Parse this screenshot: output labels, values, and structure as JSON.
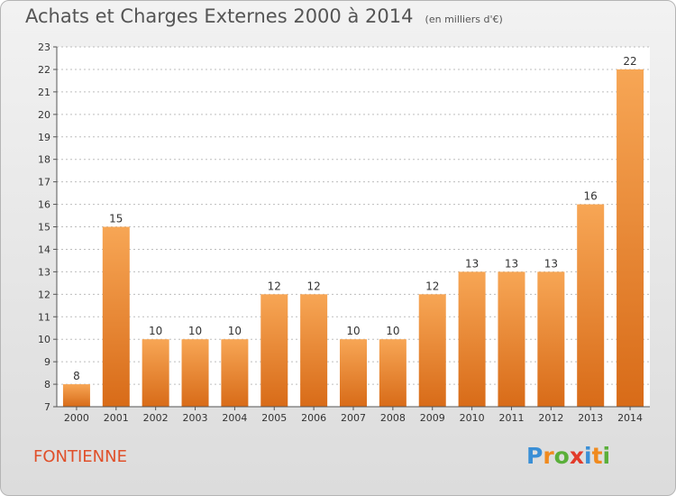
{
  "chart_data": {
    "type": "bar",
    "title": "Achats et Charges Externes 2000 à 2014",
    "subtitle": "(en milliers d'€)",
    "categories": [
      "2000",
      "2001",
      "2002",
      "2003",
      "2004",
      "2005",
      "2006",
      "2007",
      "2008",
      "2009",
      "2010",
      "2011",
      "2012",
      "2013",
      "2014"
    ],
    "values": [
      8,
      15,
      10,
      10,
      10,
      12,
      12,
      10,
      10,
      12,
      13,
      13,
      13,
      16,
      22
    ],
    "ylim": [
      7,
      23
    ],
    "yticks": [
      7,
      8,
      9,
      10,
      11,
      12,
      13,
      14,
      15,
      16,
      17,
      18,
      19,
      20,
      21,
      22,
      23
    ],
    "grid": true,
    "bar_color_top": "#f7a655",
    "bar_color_bottom": "#d86b18"
  },
  "commune": "FONTIENNE",
  "logo": {
    "letters": [
      "P",
      "r",
      "o",
      "x",
      "i",
      "t",
      "i"
    ],
    "colors": [
      "#3a8fd6",
      "#f08a1e",
      "#5aaf3a",
      "#e23b2a",
      "#3a8fd6",
      "#f08a1e",
      "#5aaf3a"
    ]
  }
}
